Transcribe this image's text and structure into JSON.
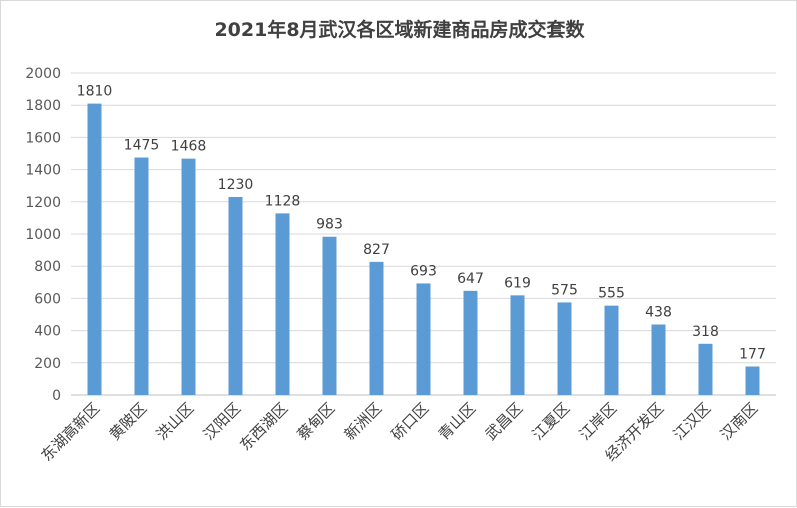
{
  "chart_data": {
    "type": "bar",
    "title": "2021年8月武汉各区域新建商品房成交套数",
    "categories": [
      "东湖高新区",
      "黄陂区",
      "洪山区",
      "汉阳区",
      "东西湖区",
      "蔡甸区",
      "新洲区",
      "硚口区",
      "青山区",
      "武昌区",
      "江夏区",
      "江岸区",
      "经济开发区",
      "江汉区",
      "汉南区"
    ],
    "values": [
      1810,
      1475,
      1468,
      1230,
      1128,
      983,
      827,
      693,
      647,
      619,
      575,
      555,
      438,
      318,
      177
    ],
    "ylim": [
      0,
      2000
    ],
    "yticks": [
      0,
      200,
      400,
      600,
      800,
      1000,
      1200,
      1400,
      1600,
      1800,
      2000
    ],
    "xlabel": "",
    "ylabel": "",
    "grid": true,
    "bar_color": "#5B9BD5",
    "data_labels": true
  }
}
